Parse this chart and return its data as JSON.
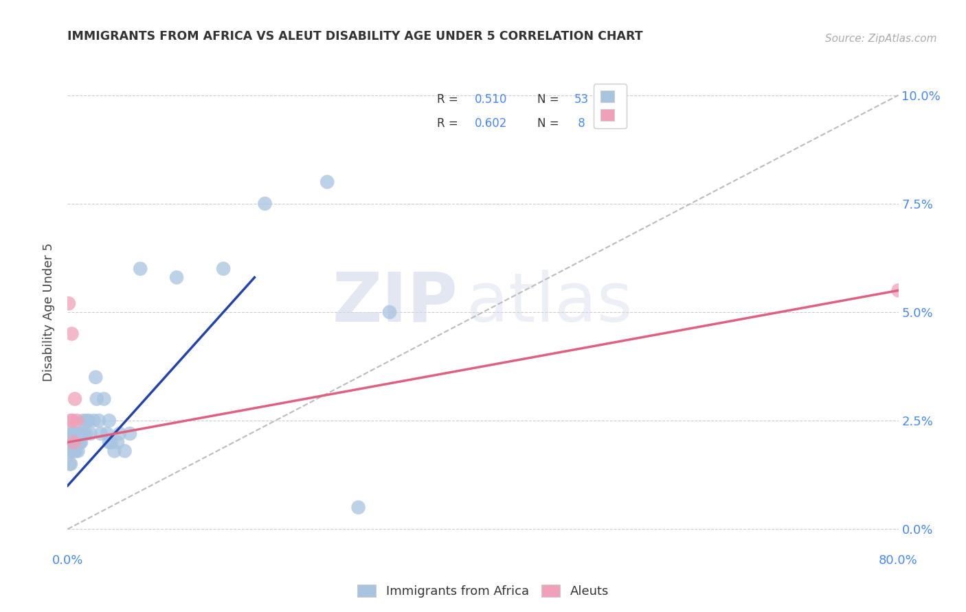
{
  "title": "IMMIGRANTS FROM AFRICA VS ALEUT DISABILITY AGE UNDER 5 CORRELATION CHART",
  "source": "Source: ZipAtlas.com",
  "xlabel_ticks": [
    "0.0%",
    "",
    "",
    "",
    "80.0%"
  ],
  "ylabel_ticks_right": [
    "0.0%",
    "2.5%",
    "5.0%",
    "7.5%",
    "10.0%"
  ],
  "xlim": [
    0.0,
    0.8
  ],
  "ylim": [
    -0.005,
    0.105
  ],
  "watermark_zip": "ZIP",
  "watermark_atlas": "atlas",
  "legend_r1": "R = 0.510",
  "legend_n1": "N = 53",
  "legend_r2": "R = 0.602",
  "legend_n2": "N =  8",
  "legend_bottom_label1": "Immigrants from Africa",
  "legend_bottom_label2": "Aleuts",
  "africa_color": "#a8c4e0",
  "aleut_color": "#f0a0b8",
  "africa_line_color": "#2244aa",
  "aleut_line_color": "#e06080",
  "dashed_line_color": "#bbbbbb",
  "tick_color": "#4488ff",
  "africa_scatter": [
    [
      0.001,
      0.02
    ],
    [
      0.002,
      0.015
    ],
    [
      0.002,
      0.022
    ],
    [
      0.003,
      0.018
    ],
    [
      0.003,
      0.015
    ],
    [
      0.004,
      0.018
    ],
    [
      0.004,
      0.02
    ],
    [
      0.005,
      0.022
    ],
    [
      0.005,
      0.018
    ],
    [
      0.006,
      0.02
    ],
    [
      0.006,
      0.022
    ],
    [
      0.007,
      0.018
    ],
    [
      0.007,
      0.02
    ],
    [
      0.008,
      0.018
    ],
    [
      0.008,
      0.02
    ],
    [
      0.009,
      0.022
    ],
    [
      0.009,
      0.02
    ],
    [
      0.01,
      0.02
    ],
    [
      0.01,
      0.018
    ],
    [
      0.011,
      0.02
    ],
    [
      0.012,
      0.022
    ],
    [
      0.012,
      0.02
    ],
    [
      0.013,
      0.022
    ],
    [
      0.013,
      0.02
    ],
    [
      0.015,
      0.025
    ],
    [
      0.015,
      0.022
    ],
    [
      0.016,
      0.022
    ],
    [
      0.018,
      0.025
    ],
    [
      0.018,
      0.022
    ],
    [
      0.02,
      0.025
    ],
    [
      0.022,
      0.022
    ],
    [
      0.025,
      0.025
    ],
    [
      0.027,
      0.035
    ],
    [
      0.028,
      0.03
    ],
    [
      0.03,
      0.025
    ],
    [
      0.032,
      0.022
    ],
    [
      0.035,
      0.03
    ],
    [
      0.038,
      0.022
    ],
    [
      0.04,
      0.025
    ],
    [
      0.04,
      0.02
    ],
    [
      0.042,
      0.02
    ],
    [
      0.045,
      0.018
    ],
    [
      0.048,
      0.02
    ],
    [
      0.05,
      0.022
    ],
    [
      0.055,
      0.018
    ],
    [
      0.06,
      0.022
    ],
    [
      0.07,
      0.06
    ],
    [
      0.105,
      0.058
    ],
    [
      0.15,
      0.06
    ],
    [
      0.19,
      0.075
    ],
    [
      0.25,
      0.08
    ],
    [
      0.28,
      0.005
    ],
    [
      0.31,
      0.05
    ]
  ],
  "aleut_scatter": [
    [
      0.001,
      0.052
    ],
    [
      0.003,
      0.025
    ],
    [
      0.004,
      0.045
    ],
    [
      0.005,
      0.025
    ],
    [
      0.006,
      0.02
    ],
    [
      0.007,
      0.03
    ],
    [
      0.009,
      0.025
    ],
    [
      0.8,
      0.055
    ]
  ],
  "africa_trendline_x": [
    0.0,
    0.18
  ],
  "africa_trendline_y": [
    0.01,
    0.058
  ],
  "aleut_trendline_x": [
    0.0,
    0.8
  ],
  "aleut_trendline_y": [
    0.02,
    0.055
  ],
  "dashed_trendline_x": [
    0.0,
    0.8
  ],
  "dashed_trendline_y": [
    0.0,
    0.1
  ]
}
